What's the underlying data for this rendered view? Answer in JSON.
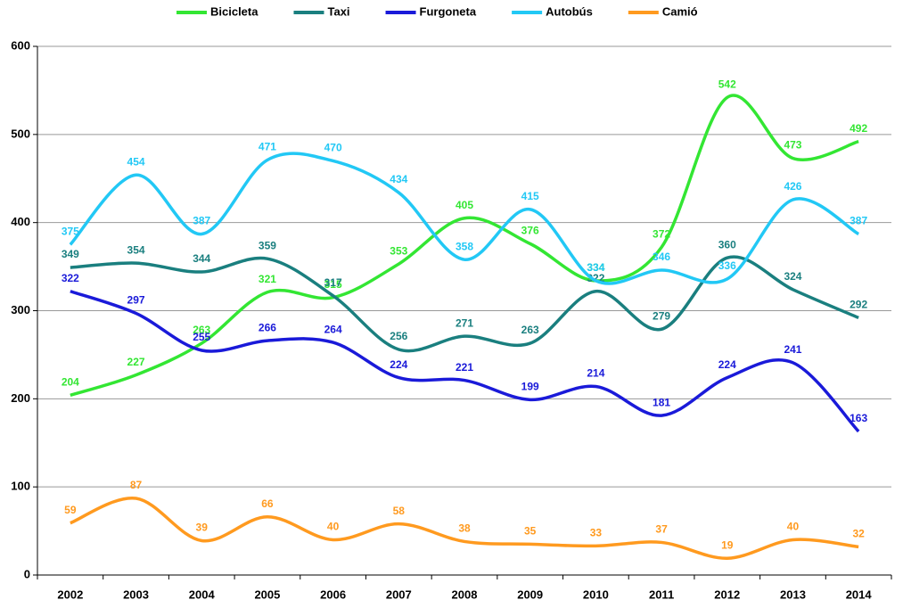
{
  "chart_data": {
    "type": "line",
    "categories": [
      "2002",
      "2003",
      "2004",
      "2005",
      "2006",
      "2007",
      "2008",
      "2009",
      "2010",
      "2011",
      "2012",
      "2013",
      "2014"
    ],
    "series": [
      {
        "name": "Bicicleta",
        "color": "#33e633",
        "values": [
          204,
          227,
          263,
          321,
          315,
          353,
          405,
          376,
          334,
          372,
          542,
          473,
          492
        ]
      },
      {
        "name": "Taxi",
        "color": "#1a7f7f",
        "values": [
          349,
          354,
          344,
          359,
          317,
          256,
          271,
          263,
          322,
          279,
          360,
          324,
          292
        ]
      },
      {
        "name": "Furgoneta",
        "color": "#1a1ad9",
        "values": [
          322,
          297,
          255,
          266,
          264,
          224,
          221,
          199,
          214,
          181,
          224,
          241,
          163
        ]
      },
      {
        "name": "Autobús",
        "color": "#22c8f5",
        "values": [
          375,
          454,
          387,
          471,
          470,
          434,
          358,
          415,
          334,
          346,
          336,
          426,
          387
        ]
      },
      {
        "name": "Camió",
        "color": "#ff9a1f",
        "values": [
          59,
          87,
          39,
          66,
          40,
          58,
          38,
          35,
          33,
          37,
          19,
          40,
          32
        ]
      }
    ],
    "ylim": [
      0,
      600
    ],
    "yticks": [
      0,
      100,
      200,
      300,
      400,
      500,
      600
    ],
    "grid": true,
    "legend": "top"
  }
}
